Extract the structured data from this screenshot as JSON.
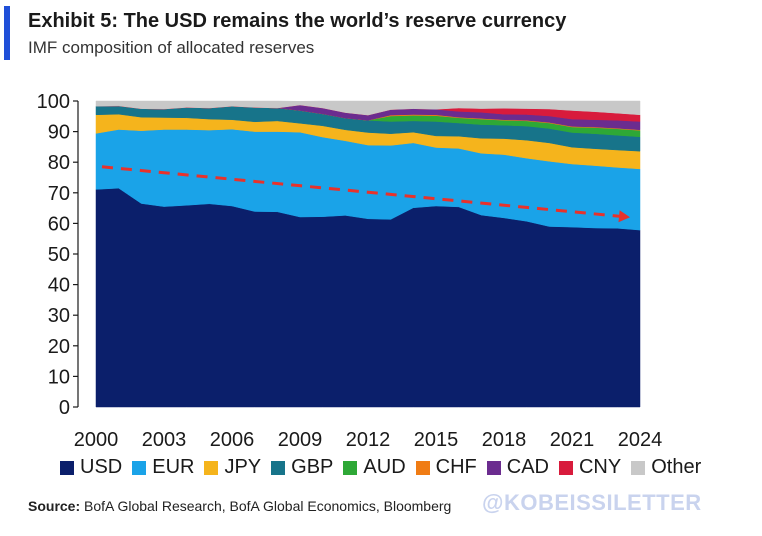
{
  "header": {
    "title": "Exhibit 5: The USD remains the world’s reserve currency",
    "subtitle": "IMF composition of allocated reserves",
    "accent_color": "#1f4fd8"
  },
  "footer": {
    "source_label": "Source:",
    "source_text": "BofA Global Research, BofA Global Economics, Bloomberg",
    "watermark": "@KOBEISSILETTER"
  },
  "chart_data": {
    "type": "area",
    "stacked": true,
    "x": [
      2000,
      2001,
      2002,
      2003,
      2004,
      2005,
      2006,
      2007,
      2008,
      2009,
      2010,
      2011,
      2012,
      2013,
      2014,
      2015,
      2016,
      2017,
      2018,
      2019,
      2020,
      2021,
      2022,
      2023,
      2024
    ],
    "xticks": [
      "2000",
      "2003",
      "2006",
      "2009",
      "2012",
      "2015",
      "2018",
      "2021",
      "2024"
    ],
    "ylim": [
      0,
      100
    ],
    "yticks": [
      "0",
      "10",
      "20",
      "30",
      "40",
      "50",
      "60",
      "70",
      "80",
      "90",
      "100"
    ],
    "grid": false,
    "legend_position": "bottom",
    "series": [
      {
        "name": "USD",
        "color": "#0b1f6b",
        "values": [
          71.1,
          71.5,
          66.5,
          65.5,
          65.9,
          66.4,
          65.7,
          63.9,
          63.8,
          62.1,
          62.2,
          62.6,
          61.5,
          61.3,
          65.1,
          65.7,
          65.4,
          62.7,
          61.8,
          60.7,
          59.0,
          58.8,
          58.5,
          58.4,
          57.8
        ]
      },
      {
        "name": "EUR",
        "color": "#1aa3e8",
        "values": [
          18.3,
          19.2,
          23.8,
          25.2,
          24.8,
          24.1,
          25.1,
          26.1,
          26.2,
          27.7,
          26.0,
          24.4,
          24.1,
          24.2,
          21.2,
          19.1,
          19.1,
          20.2,
          20.7,
          20.6,
          21.3,
          20.6,
          20.4,
          19.9,
          20.0
        ]
      },
      {
        "name": "JPY",
        "color": "#f5b41c",
        "values": [
          6.1,
          5.0,
          4.4,
          3.9,
          3.8,
          3.6,
          3.1,
          3.2,
          3.5,
          2.9,
          3.7,
          3.6,
          4.1,
          3.8,
          3.5,
          3.8,
          4.0,
          4.9,
          5.2,
          5.9,
          6.0,
          5.5,
          5.5,
          5.7,
          5.8
        ]
      },
      {
        "name": "GBP",
        "color": "#17748a",
        "values": [
          2.8,
          2.7,
          2.8,
          2.8,
          3.4,
          3.6,
          4.4,
          4.7,
          4.2,
          4.2,
          3.9,
          3.8,
          4.0,
          4.0,
          3.7,
          4.7,
          4.3,
          4.5,
          4.4,
          4.6,
          4.7,
          4.8,
          4.9,
          4.8,
          4.7
        ]
      },
      {
        "name": "AUD",
        "color": "#2ea836",
        "values": [
          0,
          0,
          0,
          0,
          0,
          0,
          0,
          0,
          0,
          0,
          0,
          0,
          0,
          1.8,
          1.8,
          1.9,
          1.7,
          1.8,
          1.6,
          1.7,
          1.8,
          1.8,
          2.0,
          2.1,
          2.1
        ]
      },
      {
        "name": "CHF",
        "color": "#f07c14",
        "values": [
          0,
          0,
          0,
          0,
          0,
          0,
          0,
          0,
          0,
          0,
          0,
          0,
          0,
          0.3,
          0.3,
          0.3,
          0.2,
          0.2,
          0.2,
          0.2,
          0.2,
          0.2,
          0.2,
          0.2,
          0.2
        ]
      },
      {
        "name": "CAD",
        "color": "#6b2c8f",
        "values": [
          0,
          0,
          0,
          0,
          0,
          0,
          0,
          0,
          0,
          1.8,
          1.9,
          1.8,
          1.7,
          1.8,
          1.9,
          1.8,
          1.9,
          2.0,
          1.8,
          1.9,
          2.1,
          2.4,
          2.4,
          2.6,
          2.7
        ]
      },
      {
        "name": "CNY",
        "color": "#d81b3c",
        "values": [
          0,
          0,
          0,
          0,
          0,
          0,
          0,
          0,
          0,
          0,
          0,
          0,
          0,
          0,
          0,
          0,
          1.1,
          1.2,
          1.9,
          1.9,
          2.3,
          2.8,
          2.6,
          2.3,
          2.2
        ]
      },
      {
        "name": "Other",
        "color": "#c8c8c8",
        "values": [
          1.7,
          1.6,
          2.5,
          2.6,
          2.1,
          2.3,
          1.7,
          2.1,
          2.3,
          1.2,
          2.3,
          3.8,
          4.6,
          2.8,
          2.5,
          2.7,
          2.3,
          2.5,
          2.4,
          2.5,
          2.6,
          3.1,
          3.5,
          4.0,
          4.5
        ]
      }
    ],
    "trend_line": {
      "from": {
        "x": 2000,
        "y": 78.5
      },
      "to": {
        "x": 2024,
        "y": 62.0
      },
      "color": "#e8322b",
      "style": "dashed"
    }
  }
}
